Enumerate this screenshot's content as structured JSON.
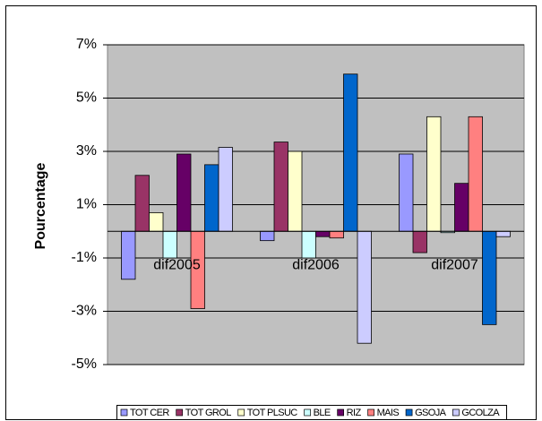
{
  "chart_data": {
    "type": "bar",
    "y_label": "Pourcentage",
    "categories": [
      "dif2005",
      "dif2006",
      "dif2007"
    ],
    "series": [
      {
        "name": "TOT CER",
        "color": "#9999ff",
        "values": [
          -1.8,
          -0.35,
          2.9
        ]
      },
      {
        "name": "TOT GROL",
        "color": "#993366",
        "values": [
          2.1,
          3.35,
          -0.8
        ]
      },
      {
        "name": "TOT PLSUC",
        "color": "#ffffcc",
        "values": [
          0.7,
          3.0,
          4.3
        ]
      },
      {
        "name": "BLE",
        "color": "#ccffff",
        "values": [
          -1.0,
          -1.0,
          -0.05
        ]
      },
      {
        "name": "RIZ",
        "color": "#660066",
        "values": [
          2.9,
          -0.2,
          1.8
        ]
      },
      {
        "name": "MAIS",
        "color": "#ff8080",
        "values": [
          -2.9,
          -0.25,
          4.3
        ]
      },
      {
        "name": "GSOJA",
        "color": "#0066cc",
        "values": [
          2.5,
          5.9,
          -3.5
        ]
      },
      {
        "name": "GCOLZA",
        "color": "#ccccff",
        "values": [
          3.15,
          -4.2,
          -0.2
        ]
      }
    ],
    "ylim": [
      -5,
      7
    ],
    "yticks": [
      {
        "value": -5,
        "label": "-5%"
      },
      {
        "value": -3,
        "label": "-3%"
      },
      {
        "value": -1,
        "label": "-1%"
      },
      {
        "value": 1,
        "label": "1%"
      },
      {
        "value": 3,
        "label": "3%"
      },
      {
        "value": 5,
        "label": "5%"
      },
      {
        "value": 7,
        "label": "7%"
      }
    ],
    "grid": true,
    "legend": "bottom",
    "plot_background": "#c0c0c0"
  }
}
